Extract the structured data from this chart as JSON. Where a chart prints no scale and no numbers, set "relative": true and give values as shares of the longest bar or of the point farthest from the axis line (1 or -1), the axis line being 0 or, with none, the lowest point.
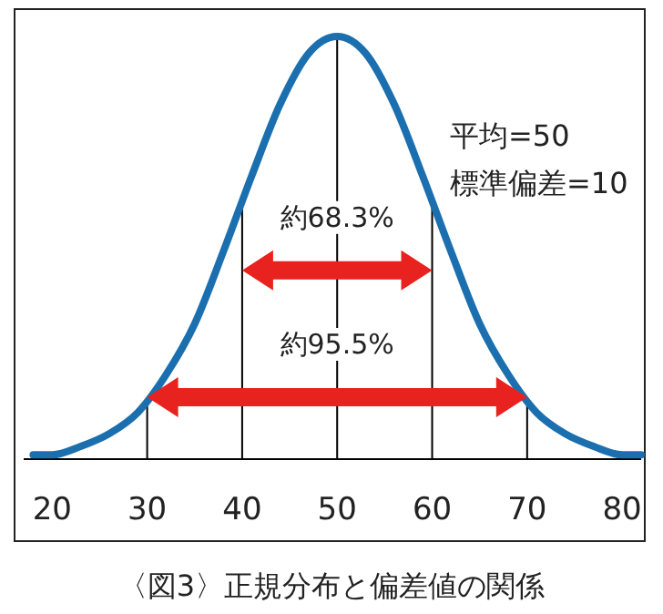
{
  "chart_data": {
    "type": "line",
    "relative": true,
    "x": [
      18,
      20,
      23,
      26,
      29,
      32,
      35,
      38,
      41,
      44,
      47,
      50,
      53,
      56,
      59,
      62,
      65,
      68,
      71,
      74,
      77,
      80,
      82
    ],
    "series": [
      {
        "color": "#1b6faf",
        "values": [
          0.01,
          0.01,
          0.03,
          0.06,
          0.11,
          0.2,
          0.32,
          0.49,
          0.67,
          0.84,
          0.96,
          1,
          0.96,
          0.84,
          0.67,
          0.49,
          0.32,
          0.2,
          0.11,
          0.06,
          0.03,
          0.01,
          0.01
        ]
      }
    ],
    "xlim": [
      17,
      82
    ],
    "xticks": [
      20,
      30,
      40,
      50,
      60,
      70,
      80
    ],
    "ref_lines": [
      {
        "axis": "x",
        "value": 30,
        "color": "#000000"
      },
      {
        "axis": "x",
        "value": 40,
        "color": "#000000"
      },
      {
        "axis": "x",
        "value": 50,
        "color": "#000000"
      },
      {
        "axis": "x",
        "value": 60,
        "color": "#000000"
      },
      {
        "axis": "x",
        "value": 70,
        "color": "#000000"
      }
    ],
    "annotations": [
      {
        "text": "約68.3%",
        "x": 50,
        "y": 0.55
      },
      {
        "text": "約95.5%",
        "x": 50,
        "y": 0.25
      },
      "平均=50",
      "標準偏差=10",
      "〈図3〉正規分布と偏差値の関係"
    ],
    "marker": "none",
    "line_style": "solid",
    "grid": false
  }
}
